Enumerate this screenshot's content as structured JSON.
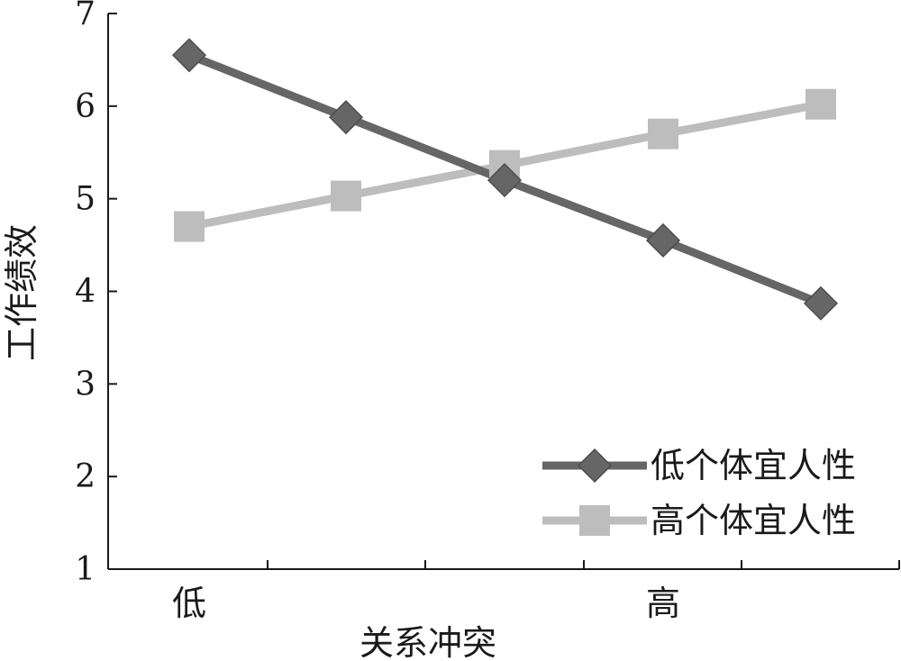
{
  "chart_data": {
    "type": "line",
    "title": "",
    "xlabel": "关系冲突",
    "ylabel": "工作绩效",
    "x": [
      1,
      2,
      3,
      4,
      5
    ],
    "x_tick_labels": [
      "低",
      "",
      "",
      "高",
      ""
    ],
    "ylim": [
      1,
      7
    ],
    "yticks": [
      1,
      2,
      3,
      4,
      5,
      6,
      7
    ],
    "grid": false,
    "legend_position": "bottom-right",
    "series": [
      {
        "name": "低个体宜人性",
        "values": [
          6.55,
          5.88,
          5.2,
          4.55,
          3.87
        ],
        "marker": "diamond",
        "color": "#666666"
      },
      {
        "name": "高个体宜人性",
        "values": [
          4.7,
          5.03,
          5.36,
          5.7,
          6.02
        ],
        "marker": "square",
        "color": "#bdbdbd"
      }
    ]
  }
}
